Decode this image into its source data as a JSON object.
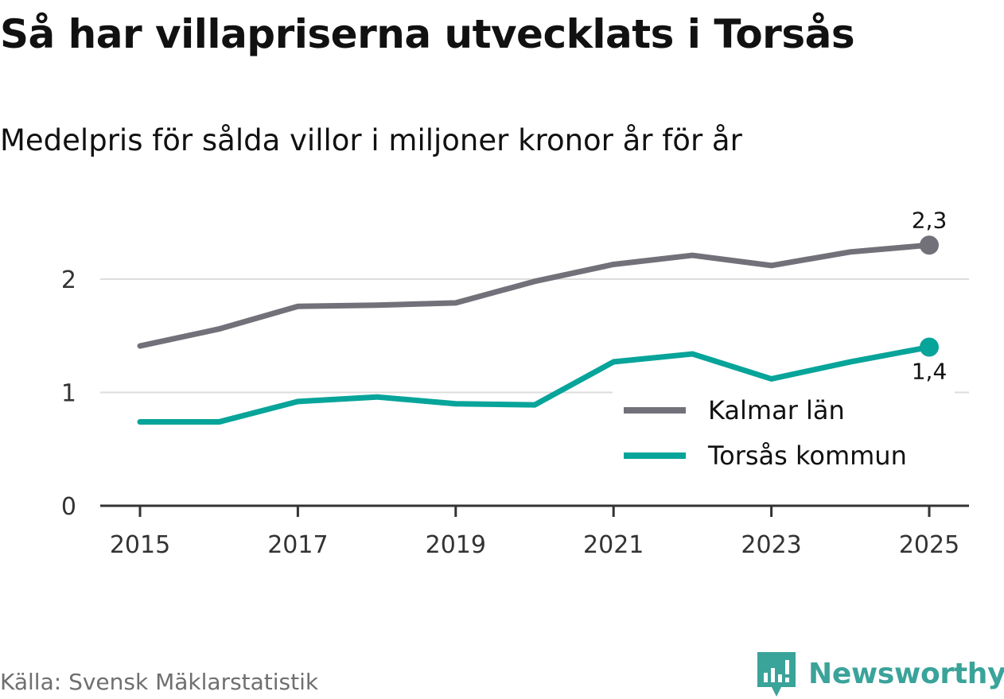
{
  "chart_data": {
    "type": "line",
    "title": "Så har villapriserna utvecklats i Torsås",
    "subtitle": "Medelpris för sålda villor i miljoner kronor år för år",
    "x": [
      2015,
      2016,
      2017,
      2018,
      2019,
      2020,
      2021,
      2022,
      2023,
      2024,
      2025
    ],
    "x_ticks": [
      "2015",
      "2017",
      "2019",
      "2021",
      "2023",
      "2025"
    ],
    "y_ticks": [
      "0",
      "1",
      "2"
    ],
    "ylim": [
      0,
      2.5
    ],
    "grid": true,
    "legend_position": "bottom-right",
    "series": [
      {
        "name": "Kalmar län",
        "color": "#727179",
        "values": [
          1.41,
          1.56,
          1.76,
          1.77,
          1.79,
          1.98,
          2.13,
          2.21,
          2.12,
          2.24,
          2.3
        ],
        "end_label": "2,3"
      },
      {
        "name": "Torsås kommun",
        "color": "#07a49a",
        "values": [
          0.74,
          0.74,
          0.92,
          0.96,
          0.9,
          0.89,
          1.27,
          1.34,
          1.12,
          1.27,
          1.4
        ],
        "end_label": "1,4"
      }
    ],
    "xlabel": "",
    "ylabel": ""
  },
  "footer": {
    "source": "Källa: Svensk Mäklarstatistik",
    "brand": "Newsworthy",
    "brand_color": "#3aa39a"
  }
}
